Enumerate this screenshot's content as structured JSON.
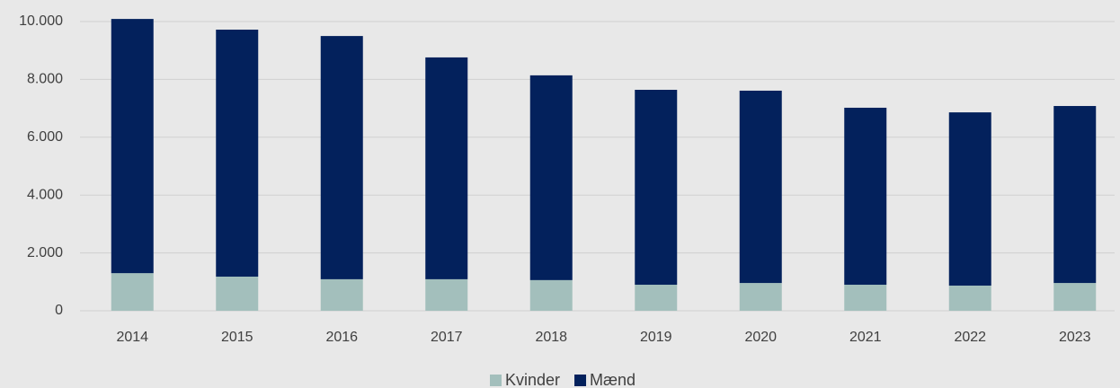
{
  "chart_data": {
    "type": "stacked_bar",
    "categories": [
      "2014",
      "2015",
      "2016",
      "2017",
      "2018",
      "2019",
      "2020",
      "2021",
      "2022",
      "2023"
    ],
    "series": [
      {
        "name": "Kvinder",
        "color": "#a3bfbc",
        "values": [
          1300,
          1180,
          1090,
          1090,
          1060,
          900,
          960,
          900,
          870,
          960
        ]
      },
      {
        "name": "Mænd",
        "color": "#03215c",
        "values": [
          8790,
          8540,
          8410,
          7670,
          7080,
          6740,
          6650,
          6120,
          5990,
          6120
        ]
      }
    ],
    "ylim": [
      0,
      10000
    ],
    "yticks": [
      0,
      {
        "value": 2000,
        "label": "2.000"
      },
      {
        "value": 4000,
        "label": "4.000"
      },
      {
        "value": 6000,
        "label": "6.000"
      },
      {
        "value": 8000,
        "label": "8.000"
      },
      {
        "value": 10000,
        "label": "10.000"
      }
    ],
    "grid": true,
    "legend": "bottom"
  }
}
